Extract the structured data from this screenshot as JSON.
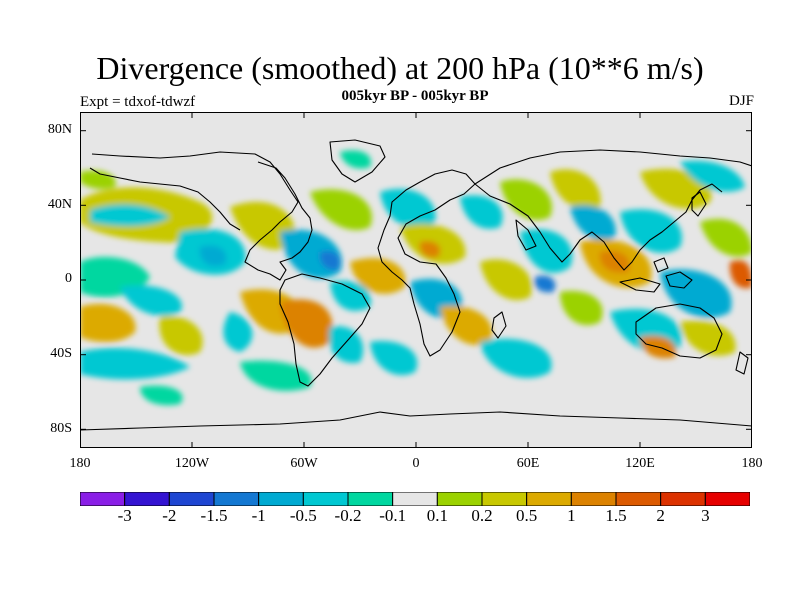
{
  "title": "Divergence (smoothed) at 200 hPa (10**6 m/s)",
  "subtitle": "005kyr BP - 005kyr BP",
  "experiment": "Expt = tdxof-tdwzf",
  "season": "DJF",
  "map": {
    "projection": "cylindrical equidistant",
    "lon_range": [
      -180,
      180
    ],
    "lat_range": [
      -90,
      90
    ],
    "background_color": "#e6e6e6",
    "coastline_color": "#000000"
  },
  "y_ticks": [
    "80N",
    "40N",
    "0",
    "40S",
    "80S"
  ],
  "x_ticks": [
    "180",
    "120W",
    "60W",
    "0",
    "60E",
    "120E",
    "180"
  ],
  "colorbar": {
    "colors": [
      "#8a1ee6",
      "#3414d2",
      "#1e46d2",
      "#1478d2",
      "#00aad2",
      "#00c8d2",
      "#00d7a0",
      "#e6e6e6",
      "#9bd200",
      "#c8c800",
      "#dcaa00",
      "#dc8200",
      "#dc5a00",
      "#dc3200",
      "#e60000"
    ],
    "labels": [
      "-3",
      "-2",
      "-1.5",
      "-1",
      "-0.5",
      "-0.2",
      "-0.1",
      "0.1",
      "0.2",
      "0.5",
      "1",
      "1.5",
      "2",
      "3"
    ]
  }
}
